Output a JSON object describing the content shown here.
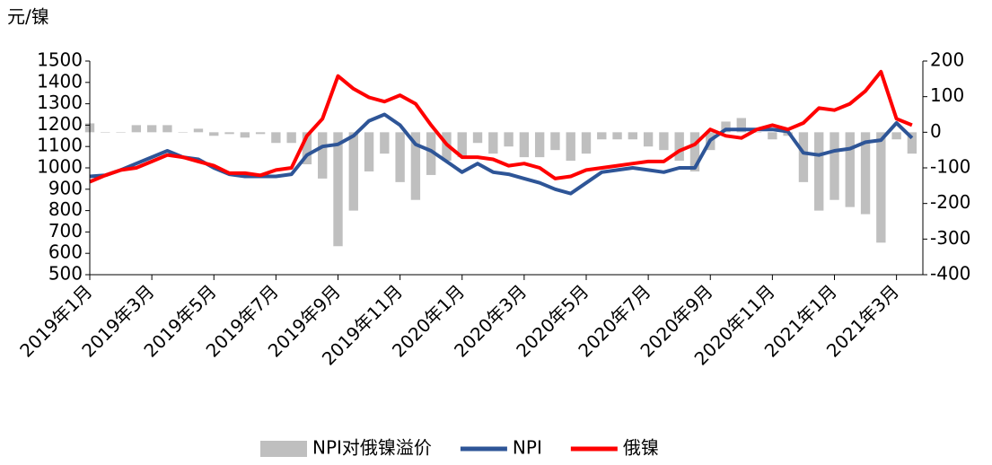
{
  "chart_data": {
    "type": "bar-line",
    "y_label": "元/镍",
    "categories": [
      "2019年1月",
      null,
      null,
      null,
      "2019年3月",
      null,
      null,
      null,
      "2019年5月",
      null,
      null,
      null,
      "2019年7月",
      null,
      null,
      null,
      "2019年9月",
      null,
      null,
      null,
      "2019年11月",
      null,
      null,
      null,
      "2020年1月",
      null,
      null,
      null,
      "2020年3月",
      null,
      null,
      null,
      "2020年5月",
      null,
      null,
      null,
      "2020年7月",
      null,
      null,
      null,
      "2020年9月",
      null,
      null,
      null,
      "2020年11月",
      null,
      null,
      null,
      "2021年1月",
      null,
      null,
      null,
      "2021年3月",
      null
    ],
    "series": [
      {
        "name": "NPI对俄镍溢价",
        "type": "bar",
        "axis": "y2",
        "color": "#bfbfbf",
        "values": [
          25,
          0,
          0,
          20,
          20,
          20,
          0,
          10,
          -10,
          -5,
          -15,
          -5,
          -30,
          -30,
          -90,
          -130,
          -320,
          -220,
          -110,
          -60,
          -140,
          -190,
          -120,
          -80,
          -70,
          -30,
          -60,
          -40,
          -70,
          -70,
          -50,
          -80,
          -60,
          -20,
          -20,
          -20,
          -40,
          -50,
          -80,
          -110,
          -50,
          30,
          40,
          0,
          -20,
          -10,
          -140,
          -220,
          -190,
          -210,
          -230,
          -310,
          -20,
          -60
        ]
      },
      {
        "name": "NPI",
        "type": "line",
        "color": "#2e5597",
        "values": [
          960,
          965,
          990,
          1020,
          1050,
          1080,
          1050,
          1040,
          1000,
          970,
          960,
          960,
          960,
          970,
          1060,
          1100,
          1110,
          1150,
          1220,
          1250,
          1200,
          1110,
          1080,
          1030,
          980,
          1020,
          980,
          970,
          950,
          930,
          900,
          880,
          930,
          980,
          990,
          1000,
          990,
          980,
          1000,
          1000,
          1130,
          1180,
          1180,
          1180,
          1180,
          1170,
          1070,
          1060,
          1080,
          1090,
          1120,
          1130,
          1210,
          1140
        ]
      },
      {
        "name": "俄镍",
        "type": "line",
        "color": "#ff0000",
        "values": [
          935,
          965,
          990,
          1000,
          1030,
          1060,
          1050,
          1030,
          1010,
          975,
          975,
          965,
          990,
          1000,
          1150,
          1230,
          1430,
          1370,
          1330,
          1310,
          1340,
          1300,
          1200,
          1110,
          1050,
          1050,
          1040,
          1010,
          1020,
          1000,
          950,
          960,
          990,
          1000,
          1010,
          1020,
          1030,
          1030,
          1080,
          1110,
          1180,
          1150,
          1140,
          1180,
          1200,
          1180,
          1210,
          1280,
          1270,
          1300,
          1360,
          1450,
          1230,
          1200
        ]
      }
    ],
    "ylim": [
      500,
      1500
    ],
    "yticks": [
      500,
      600,
      700,
      800,
      900,
      1000,
      1100,
      1200,
      1300,
      1400,
      1500
    ],
    "y2lim": [
      -400,
      200
    ],
    "y2ticks": [
      -400,
      -300,
      -200,
      -100,
      0,
      100,
      200
    ],
    "legend": "bottom"
  }
}
